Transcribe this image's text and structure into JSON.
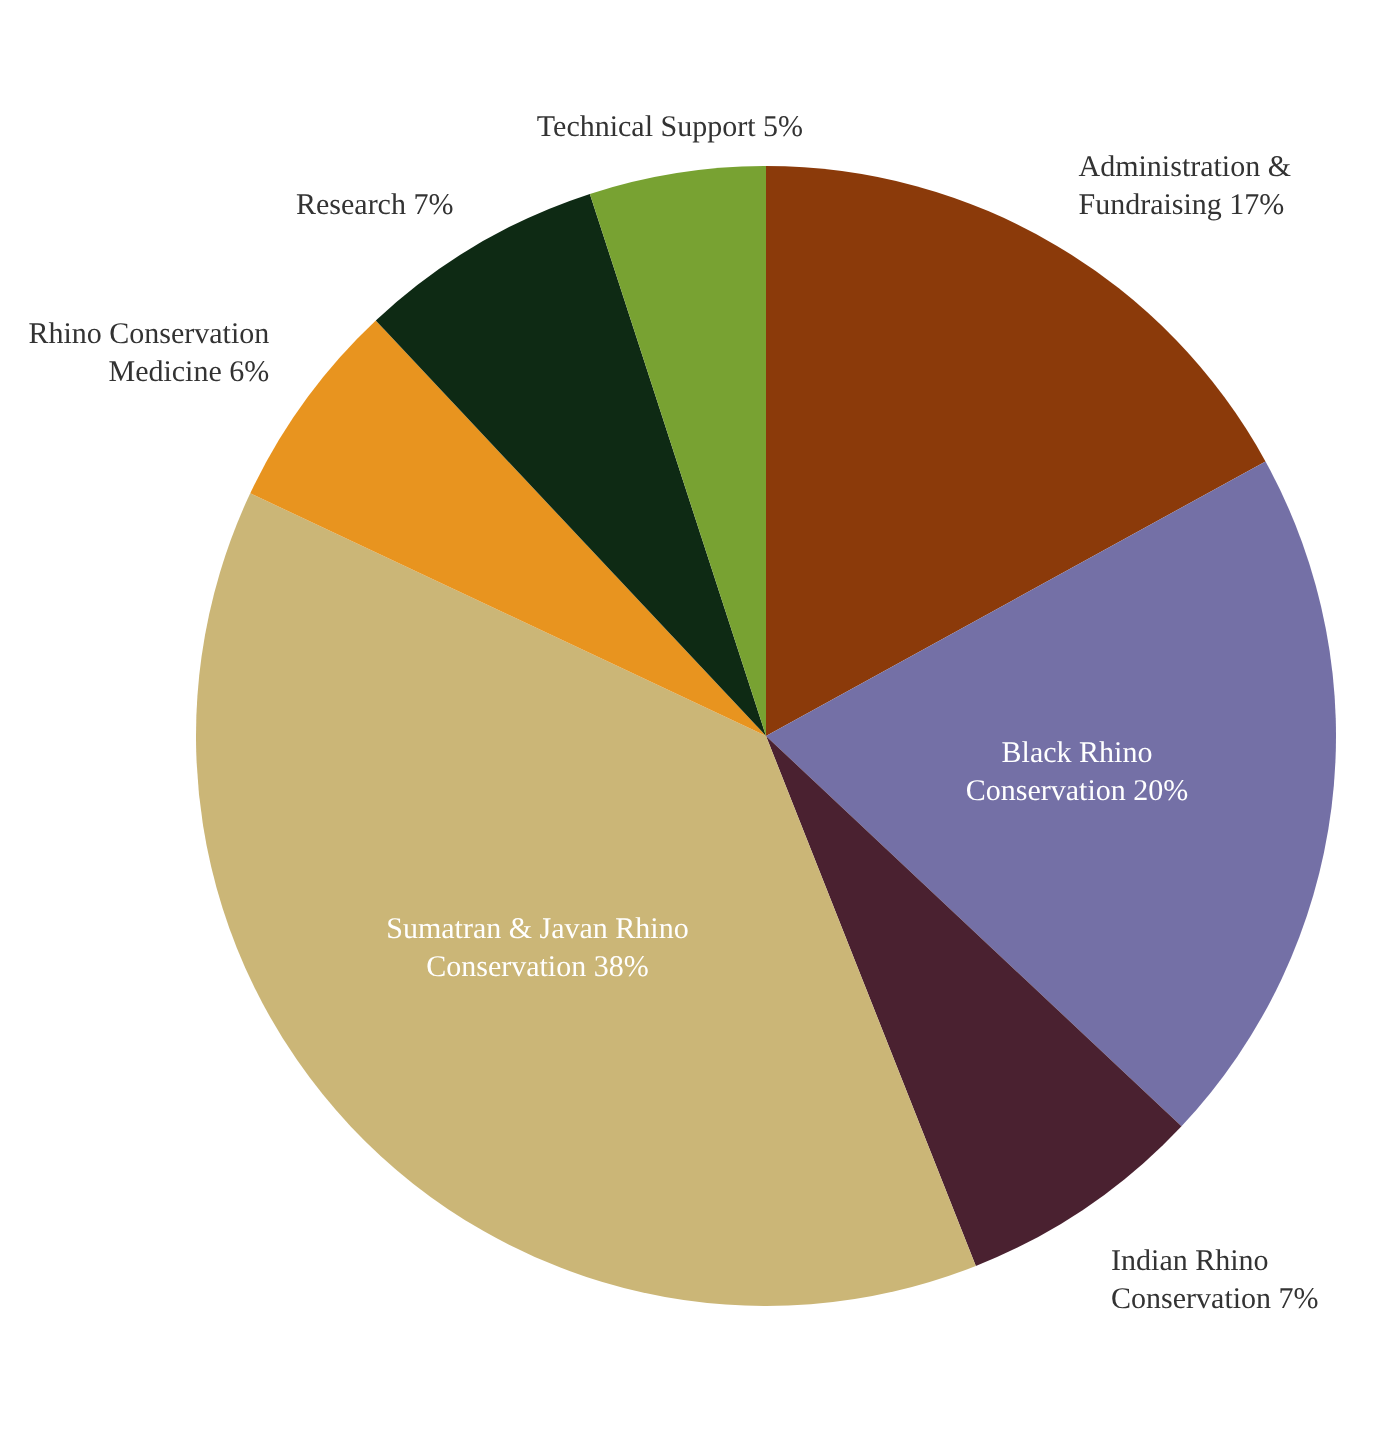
{
  "chart_data": {
    "type": "pie",
    "categories": [
      "Administration & Fundraising",
      "Black Rhino Conservation",
      "Indian Rhino Conservation",
      "Sumatran & Javan Rhino Conservation",
      "Rhino Conservation Medicine",
      "Research",
      "Technical Support"
    ],
    "values": [
      17,
      20,
      7,
      38,
      6,
      7,
      5
    ],
    "value_labels": [
      "17%",
      "20%",
      "7%",
      "38%",
      "6%",
      "7%",
      "5%"
    ],
    "colors": [
      "#8b3a0a",
      "#7470a6",
      "#4a2130",
      "#cbb677",
      "#e8941f",
      "#0e2a14",
      "#78a232"
    ],
    "legend": false
  }
}
